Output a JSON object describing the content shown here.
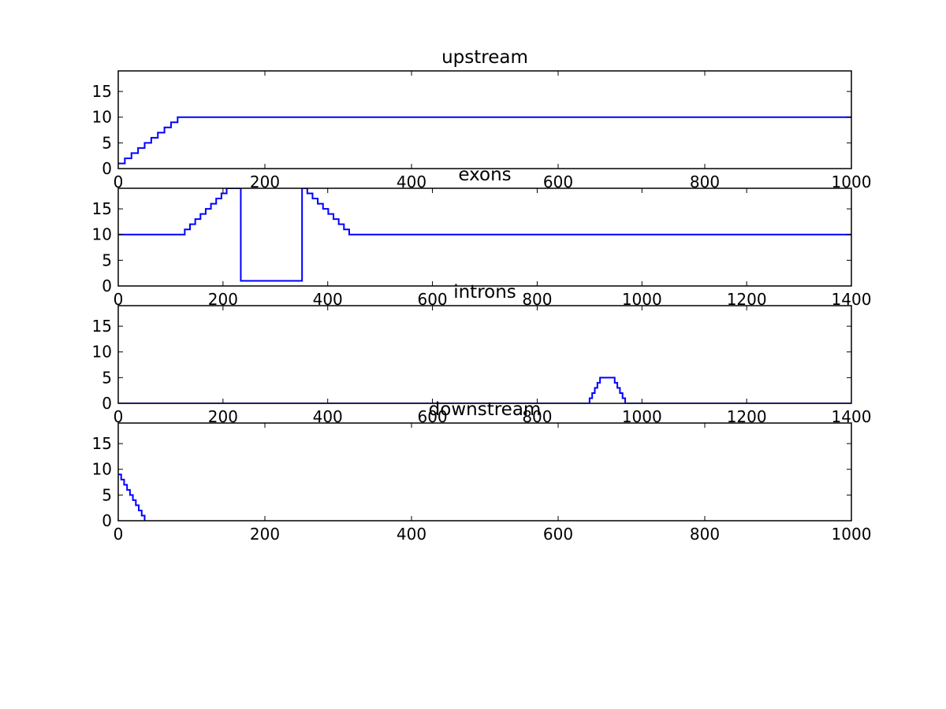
{
  "chart_data": [
    {
      "type": "line",
      "title": "upstream",
      "xlim": [
        0,
        1000
      ],
      "ylim": [
        0,
        19
      ],
      "xticks": [
        0,
        200,
        400,
        600,
        800,
        1000
      ],
      "yticks": [
        0,
        5,
        10,
        15
      ],
      "series": [
        {
          "color": "#0000ff",
          "step": true,
          "x": [
            0,
            9,
            18,
            27,
            36,
            45,
            54,
            63,
            72,
            81,
            90,
            1000
          ],
          "y": [
            1,
            2,
            3,
            4,
            5,
            6,
            7,
            8,
            9,
            10,
            10,
            10
          ]
        }
      ]
    },
    {
      "type": "line",
      "title": "exons",
      "xlim": [
        0,
        1400
      ],
      "ylim": [
        0,
        19
      ],
      "xticks": [
        0,
        200,
        400,
        600,
        800,
        1000,
        1200,
        1400
      ],
      "yticks": [
        0,
        5,
        10,
        15
      ],
      "series": [
        {
          "color": "#0000ff",
          "step": true,
          "x": [
            0,
            127,
            137,
            147,
            157,
            167,
            177,
            187,
            197,
            207,
            217,
            234,
            351,
            361,
            371,
            381,
            391,
            401,
            411,
            421,
            431,
            441,
            451,
            1400
          ],
          "y": [
            10,
            11,
            12,
            13,
            14,
            15,
            16,
            17,
            18,
            19,
            19,
            1,
            19,
            18,
            17,
            16,
            15,
            14,
            13,
            12,
            11,
            10,
            10,
            10
          ]
        }
      ]
    },
    {
      "type": "line",
      "title": "introns",
      "xlim": [
        0,
        1400
      ],
      "ylim": [
        0,
        19
      ],
      "xticks": [
        0,
        200,
        400,
        600,
        800,
        1000,
        1200,
        1400
      ],
      "yticks": [
        0,
        5,
        10,
        15
      ],
      "series": [
        {
          "color": "#0000ff",
          "step": true,
          "x": [
            0,
            900,
            905,
            910,
            915,
            920,
            948,
            953,
            958,
            963,
            968,
            973,
            1400
          ],
          "y": [
            0,
            1,
            2,
            3,
            4,
            5,
            4,
            3,
            2,
            1,
            0,
            0,
            0
          ]
        }
      ]
    },
    {
      "type": "line",
      "title": "downstream",
      "xlim": [
        0,
        1000
      ],
      "ylim": [
        0,
        19
      ],
      "xticks": [
        0,
        200,
        400,
        600,
        800,
        1000
      ],
      "yticks": [
        0,
        5,
        10,
        15
      ],
      "series": [
        {
          "color": "#0000ff",
          "step": true,
          "x": [
            0,
            4,
            8,
            12,
            16,
            20,
            24,
            28,
            32,
            36
          ],
          "y": [
            9,
            8,
            7,
            6,
            5,
            4,
            3,
            2,
            1,
            0
          ]
        }
      ]
    }
  ]
}
